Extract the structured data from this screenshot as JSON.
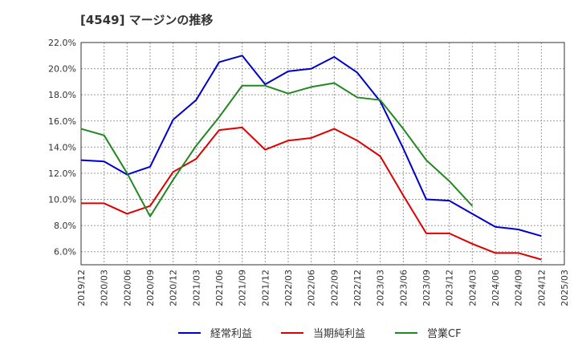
{
  "title": "[4549]  マージンの推移",
  "chart_data": {
    "type": "line",
    "title": "[4549]  マージンの推移",
    "xlabel": "",
    "ylabel": "",
    "x": [
      "2019/12",
      "2020/03",
      "2020/06",
      "2020/09",
      "2020/12",
      "2021/03",
      "2021/06",
      "2021/09",
      "2021/12",
      "2022/03",
      "2022/06",
      "2022/09",
      "2022/12",
      "2023/03",
      "2023/06",
      "2023/09",
      "2023/12",
      "2024/03",
      "2024/06",
      "2024/09",
      "2024/12",
      "2025/03"
    ],
    "y_ticks": [
      "6.0%",
      "8.0%",
      "10.0%",
      "12.0%",
      "14.0%",
      "16.0%",
      "18.0%",
      "20.0%",
      "22.0%"
    ],
    "ylim": [
      5.0,
      22.0
    ],
    "grid": true,
    "legend_position": "bottom",
    "series": [
      {
        "name": "経常利益",
        "color": "#0000cc",
        "values": [
          13.0,
          12.9,
          11.9,
          12.5,
          16.1,
          17.6,
          20.5,
          21.0,
          18.8,
          19.8,
          20.0,
          20.9,
          19.7,
          17.5,
          13.9,
          10.0,
          9.9,
          8.9,
          7.9,
          7.7,
          7.2,
          null
        ]
      },
      {
        "name": "当期純利益",
        "color": "#dd0000",
        "values": [
          9.7,
          9.7,
          8.9,
          9.5,
          12.1,
          13.1,
          15.3,
          15.5,
          13.8,
          14.5,
          14.7,
          15.4,
          14.5,
          13.3,
          10.3,
          7.4,
          7.4,
          6.6,
          5.9,
          5.9,
          5.4,
          null
        ]
      },
      {
        "name": "営業CF",
        "color": "#228822",
        "values": [
          15.4,
          14.9,
          12.0,
          8.7,
          11.5,
          14.1,
          16.3,
          18.7,
          18.7,
          18.1,
          18.6,
          18.9,
          17.8,
          17.6,
          15.4,
          13.0,
          11.4,
          9.5,
          null,
          null,
          null,
          null
        ]
      }
    ]
  }
}
